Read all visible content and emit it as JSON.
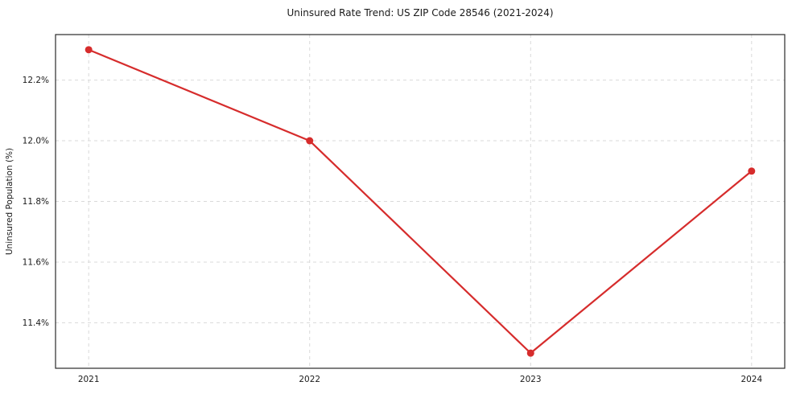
{
  "title": "Uninsured Rate Trend: US ZIP Code 28546 (2021-2024)",
  "chart_data": {
    "type": "line",
    "title": "Uninsured Rate Trend: US ZIP Code 28546 (2021-2024)",
    "x": [
      2021,
      2022,
      2023,
      2024
    ],
    "values": [
      12.3,
      12.0,
      11.3,
      11.9
    ],
    "xtick_labels": [
      "2021",
      "2022",
      "2023",
      "2024"
    ],
    "yticks": [
      11.4,
      11.6,
      11.8,
      12.0,
      12.2
    ],
    "ytick_labels": [
      "11.4%",
      "11.6%",
      "11.8%",
      "12.0%",
      "12.2%"
    ],
    "xlabel": "",
    "ylabel": "Uninsured Population (%)",
    "ylim": [
      11.25,
      12.35
    ],
    "grid": true,
    "grid_style": "dashed",
    "legend": "none",
    "marker": "circle"
  },
  "colors": {
    "line": "#d62c2c",
    "marker": "#d62c2c",
    "grid": "#d9d9d9",
    "axis_box": "#2a2a2a",
    "text": "#1a1a1a"
  }
}
